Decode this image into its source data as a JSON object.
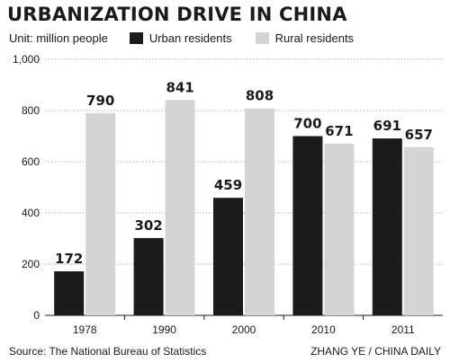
{
  "header": {
    "title": "URBANIZATION DRIVE IN CHINA",
    "unit": "Unit: million people"
  },
  "footer": {
    "source": "Source: The National Bureau of Statistics",
    "credit": "ZHANG YE / CHINA DAILY"
  },
  "colors": {
    "urban": "#1b1b1b",
    "rural": "#d4d4d4",
    "grid": "#9a9a9a"
  },
  "chart_data": {
    "type": "bar",
    "categories": [
      "1978",
      "1990",
      "2000",
      "2010",
      "2011"
    ],
    "series": [
      {
        "name": "Urban residents",
        "values": [
          172,
          302,
          459,
          700,
          691
        ]
      },
      {
        "name": "Rural residents",
        "values": [
          790,
          841,
          808,
          671,
          657
        ]
      }
    ],
    "ylim": [
      0,
      1000
    ],
    "yticks": [
      "0",
      "200",
      "400",
      "600",
      "800",
      "1,000"
    ],
    "ytick_values": [
      0,
      200,
      400,
      600,
      800,
      1000
    ],
    "grid": true,
    "legend_position": "top"
  }
}
